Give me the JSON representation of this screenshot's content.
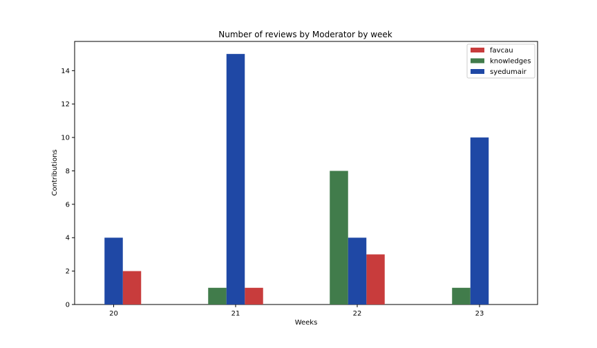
{
  "chart_data": {
    "type": "bar",
    "title": "Number of reviews by Moderator by week",
    "xlabel": "Weeks",
    "ylabel": "Contributions",
    "categories": [
      "20",
      "21",
      "22",
      "23"
    ],
    "ylim": [
      0,
      15.75
    ],
    "yticks": [
      "0",
      "2",
      "4",
      "6",
      "8",
      "10",
      "12",
      "14"
    ],
    "grid": false,
    "legend_position": "top-right",
    "series": [
      {
        "name": "favcau",
        "color": "#c83c3c",
        "values": [
          2,
          1,
          3,
          0
        ],
        "offsets": [
          1,
          1,
          1,
          1
        ]
      },
      {
        "name": "knowledges",
        "color": "#417c4b",
        "values": [
          0,
          1,
          8,
          1
        ],
        "offsets": [
          -1,
          -1,
          -1,
          -1
        ]
      },
      {
        "name": "syedumair",
        "color": "#1f48a5",
        "values": [
          4,
          15,
          4,
          10
        ],
        "offsets": [
          0,
          0,
          0,
          0
        ]
      }
    ]
  }
}
